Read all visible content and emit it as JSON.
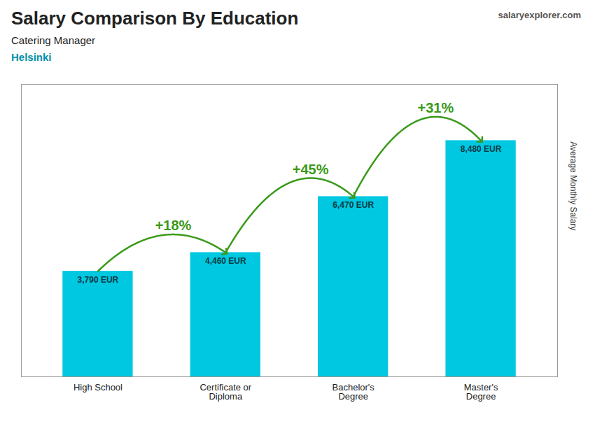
{
  "chart_data": {
    "type": "bar",
    "title": "Salary Comparison By Education",
    "subtitle": "Catering Manager",
    "ylabel": "Average Monthly Salary",
    "categories": [
      "High School",
      "Certificate or\nDiploma",
      "Bachelor's\nDegree",
      "Master's\nDegree"
    ],
    "values": [
      3790,
      4460,
      6470,
      8480
    ],
    "value_labels": [
      "3,790 EUR",
      "4,460 EUR",
      "6,470 EUR",
      "8,480 EUR"
    ],
    "data_labels": true,
    "color": "#00c8e0",
    "ylim": [
      0,
      10500
    ],
    "tick_labels": "x",
    "annotations": [
      {
        "text": "Helsinki"
      },
      {
        "text": "salaryexplorer.com"
      },
      {
        "text": "+18%",
        "from": "High School",
        "to": "Certificate or\nDiploma"
      },
      {
        "text": "+45%",
        "from": "Certificate or\nDiploma",
        "to": "Bachelor's\nDegree"
      },
      {
        "text": "+31%",
        "from": "Bachelor's\nDegree",
        "to": "Master's\nDegree"
      }
    ]
  }
}
